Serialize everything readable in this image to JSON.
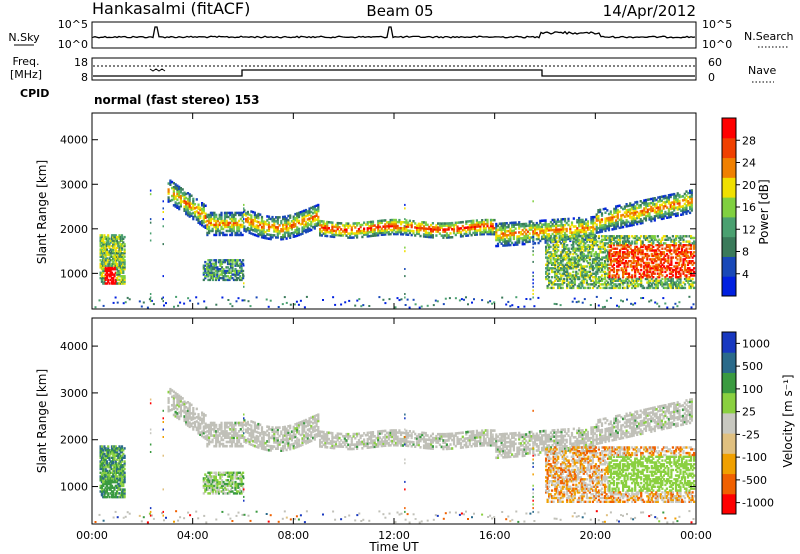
{
  "header": {
    "station": "Hankasalmi (fitACF)",
    "beam": "Beam 05",
    "date": "14/Apr/2012",
    "cpid_label": "CPID",
    "cpid_text": "normal (fast stereo) 153"
  },
  "noise_panel": {
    "left_label": "N.Sky",
    "right_label": "N.Search",
    "left_ticks": [
      "10^5",
      "10^0"
    ],
    "right_ticks": [
      "10^5",
      "10^0"
    ]
  },
  "freq_panel": {
    "left_label_1": "Freq.",
    "left_label_2": "[MHz]",
    "right_label": "Nave",
    "left_ticks": [
      "18",
      "8"
    ],
    "right_ticks": [
      "60",
      "0"
    ]
  },
  "colors": {
    "power_scale": [
      "#0020e0",
      "#1848b8",
      "#3a7a5a",
      "#4aa070",
      "#80d040",
      "#f0e000",
      "#f08000",
      "#f04000",
      "#ff0000"
    ],
    "velocity_scale": [
      "#ff0000",
      "#f06000",
      "#f0a000",
      "#e0c080",
      "#c8c8c0",
      "#8ad040",
      "#3a9a40",
      "#2a6a8a",
      "#1838c0"
    ],
    "ground_scatter": "#c0c0b8"
  },
  "chart_data": [
    {
      "type": "heatmap",
      "name": "power",
      "ylabel": "Slant Range [km]",
      "y_ticks": [
        "1000",
        "2000",
        "3000",
        "4000"
      ],
      "ylim": [
        200,
        4600
      ],
      "xlim_hours": [
        0,
        24
      ],
      "colorbar_label": "Power [dB]",
      "colorbar_ticks": [
        "4",
        "8",
        "12",
        "16",
        "20",
        "24",
        "28"
      ],
      "colorbar_range": [
        0,
        32
      ]
    },
    {
      "type": "heatmap",
      "name": "velocity",
      "ylabel": "Slant Range [km]",
      "y_ticks": [
        "1000",
        "2000",
        "3000",
        "4000"
      ],
      "ylim": [
        200,
        4600
      ],
      "xlim_hours": [
        0,
        24
      ],
      "colorbar_label": "Velocity [m s⁻¹]",
      "colorbar_ticks": [
        "1000",
        "500",
        "100",
        "25",
        "-25",
        "-100",
        "-500",
        "-1000"
      ],
      "xlabel": "Time UT",
      "x_ticks": [
        "00:00",
        "04:00",
        "08:00",
        "12:00",
        "16:00",
        "20:00",
        "00:00"
      ]
    }
  ]
}
